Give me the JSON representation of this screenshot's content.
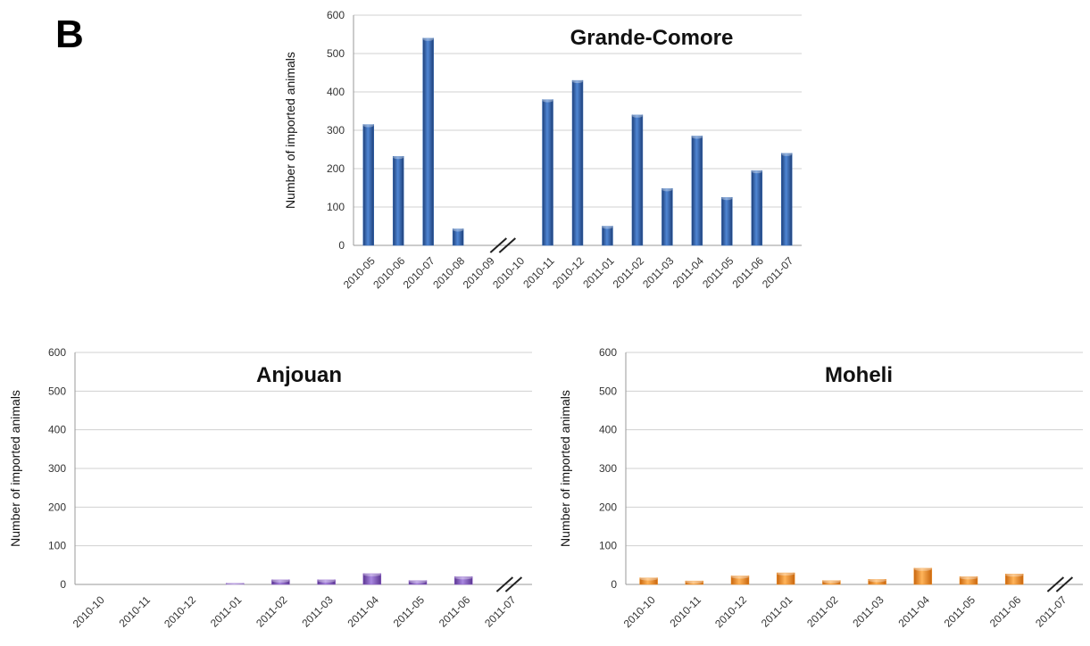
{
  "panel_label": "B",
  "chart_data": [
    {
      "type": "bar",
      "title": "Grande-Comore",
      "ylabel": "Number of imported animals",
      "xlabel": "",
      "ylim": [
        0,
        600
      ],
      "yticks": [
        0,
        100,
        200,
        300,
        400,
        500,
        600
      ],
      "categories": [
        "2010-05",
        "2010-06",
        "2010-07",
        "2010-08",
        "2010-09",
        "2010-10",
        "2010-11",
        "2010-12",
        "2011-01",
        "2011-02",
        "2011-03",
        "2011-04",
        "2011-05",
        "2011-06",
        "2011-07"
      ],
      "values": [
        315,
        232,
        540,
        43,
        null,
        null,
        380,
        430,
        50,
        340,
        148,
        285,
        125,
        195,
        240
      ],
      "axis_break_between": [
        "2010-09",
        "2010-10"
      ],
      "grid": true,
      "color": "#3a6fb8"
    },
    {
      "type": "bar",
      "title": "Anjouan",
      "ylabel": "Number of imported animals",
      "xlabel": "",
      "ylim": [
        0,
        600
      ],
      "yticks": [
        0,
        100,
        200,
        300,
        400,
        500,
        600
      ],
      "categories": [
        "2010-10",
        "2010-11",
        "2010-12",
        "2011-01",
        "2011-02",
        "2011-03",
        "2011-04",
        "2011-05",
        "2011-06",
        "2011-07"
      ],
      "values": [
        0,
        0,
        0,
        3,
        12,
        12,
        28,
        10,
        20,
        null
      ],
      "axis_break_at": "2011-07",
      "grid": true,
      "color": "#8a5cc6"
    },
    {
      "type": "bar",
      "title": "Moheli",
      "ylabel": "Number of imported animals",
      "xlabel": "",
      "ylim": [
        0,
        600
      ],
      "yticks": [
        0,
        100,
        200,
        300,
        400,
        500,
        600
      ],
      "categories": [
        "2010-10",
        "2010-11",
        "2010-12",
        "2011-01",
        "2011-02",
        "2011-03",
        "2011-04",
        "2011-05",
        "2011-06",
        "2011-07"
      ],
      "values": [
        17,
        9,
        22,
        30,
        10,
        13,
        42,
        20,
        27,
        null
      ],
      "axis_break_at": "2011-07",
      "grid": true,
      "color": "#f0922a"
    }
  ]
}
